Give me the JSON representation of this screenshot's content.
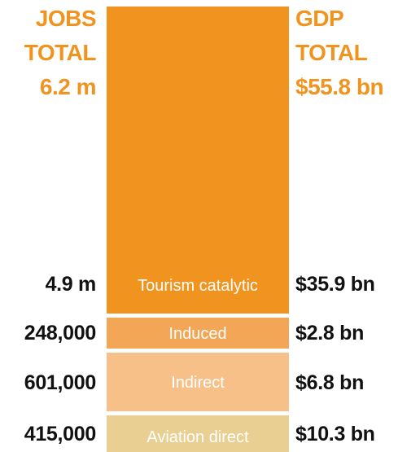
{
  "jobs": {
    "title_lines": [
      "JOBS",
      "TOTAL"
    ],
    "total": "6.2 m"
  },
  "gdp": {
    "title_lines": [
      "GDP",
      "TOTAL"
    ],
    "total": "$55.8 bn"
  },
  "segments": [
    {
      "label": "Tourism catalytic",
      "jobs": "4.9 m",
      "gdp": "$35.9 bn",
      "color": "#f0931f"
    },
    {
      "label": "Induced",
      "jobs": "248,000",
      "gdp": "$2.8 bn",
      "color": "#f3a655"
    },
    {
      "label": "Indirect",
      "jobs": "601,000",
      "gdp": "$6.8 bn",
      "color": "#f8c089"
    },
    {
      "label": "Aviation direct",
      "jobs": "415,000",
      "gdp": "$10.3 bn",
      "color": "#e9cf92"
    }
  ]
}
